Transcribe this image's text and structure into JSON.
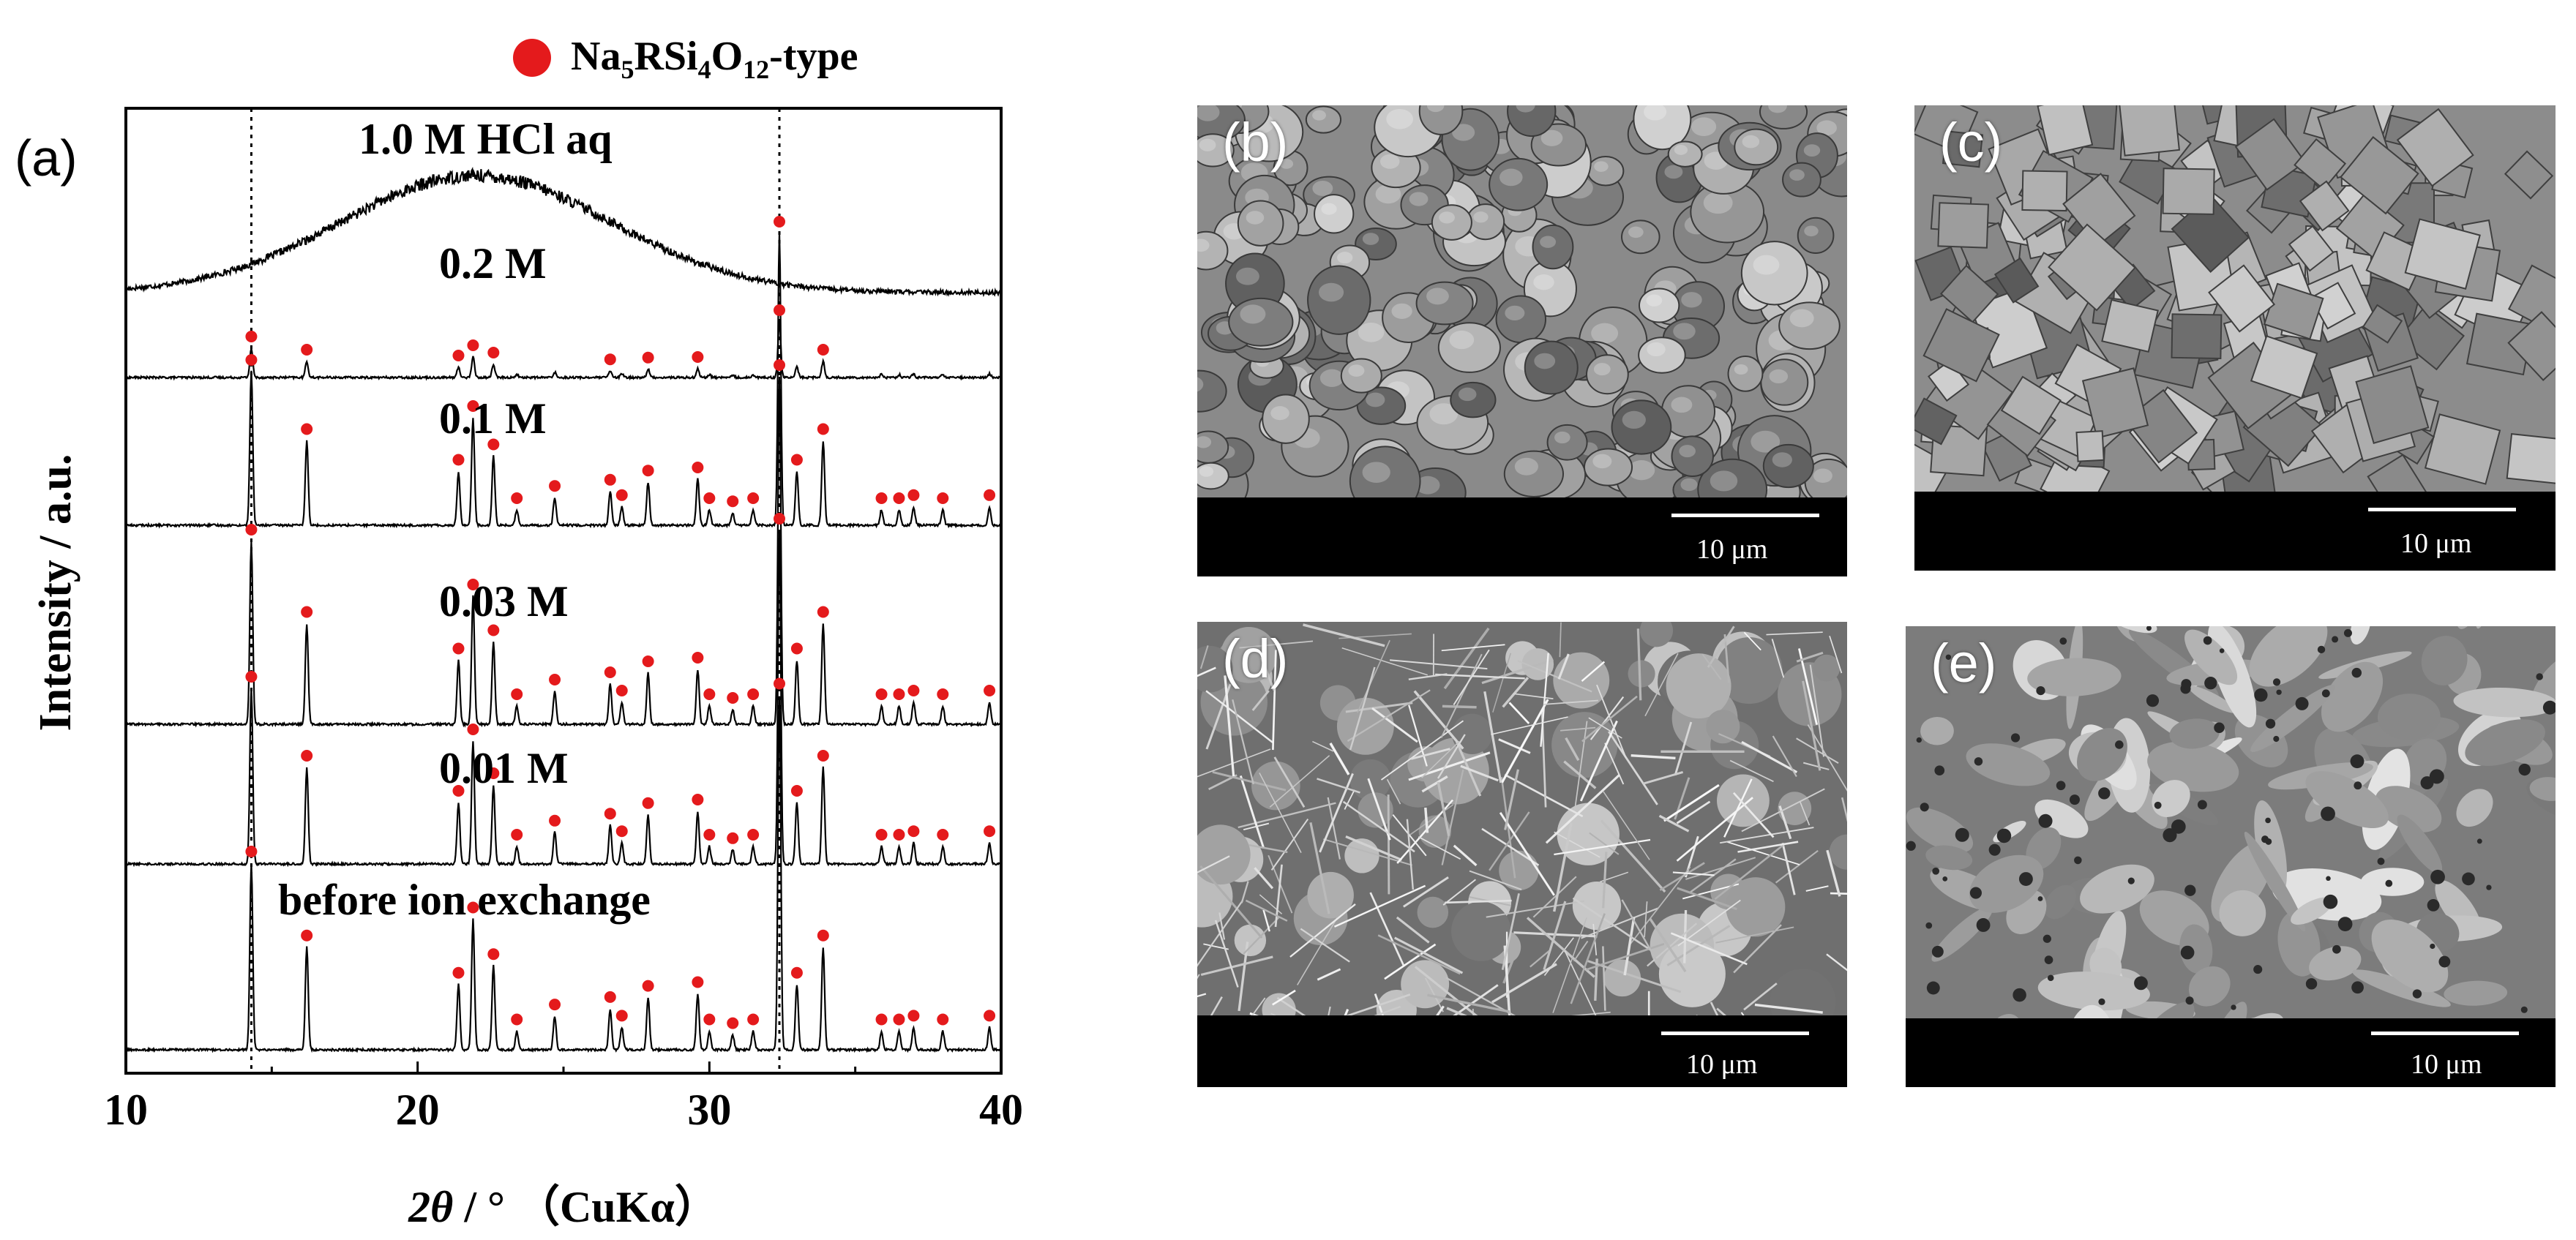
{
  "panel_label": "(a)",
  "legend": {
    "marker_color": "#e41a1c",
    "prefix": "Na",
    "sub1": "5",
    "mid1": "RSi",
    "sub2": "4",
    "mid2": "O",
    "sub3": "12",
    "suffix": "-type"
  },
  "axis": {
    "ylabel": "Intensity / a.u.",
    "xlabel_italic": "2θ",
    "xlabel_rest": " / °  （CuKα）",
    "xticks": [
      "10",
      "20",
      "30",
      "40"
    ]
  },
  "chart_data": {
    "type": "line",
    "xlim": [
      10,
      40
    ],
    "grid": false,
    "reference_lines_x": [
      14.3,
      32.4
    ],
    "peak_positions_2theta": [
      14.3,
      16.2,
      21.4,
      21.9,
      22.6,
      23.4,
      24.7,
      26.6,
      27.0,
      27.9,
      29.6,
      30.0,
      30.8,
      31.5,
      32.4,
      33.0,
      33.9,
      35.9,
      36.5,
      37.0,
      38.0,
      39.6
    ],
    "series": [
      {
        "name": "1.0 M HCl aq",
        "values": []
      },
      {
        "name": "0.2 M",
        "values": []
      },
      {
        "name": "0.1 M",
        "values": []
      },
      {
        "name": "0.03 M",
        "values": []
      },
      {
        "name": "0.01 M",
        "values": []
      },
      {
        "name": "before ion exchange",
        "values": []
      }
    ]
  },
  "sem_images": [
    {
      "label": "(b)",
      "scale_text": "10 μm"
    },
    {
      "label": "(c)",
      "scale_text": "10 μm"
    },
    {
      "label": "(d)",
      "scale_text": "10 μm"
    },
    {
      "label": "(e)",
      "scale_text": "10 μm"
    }
  ]
}
